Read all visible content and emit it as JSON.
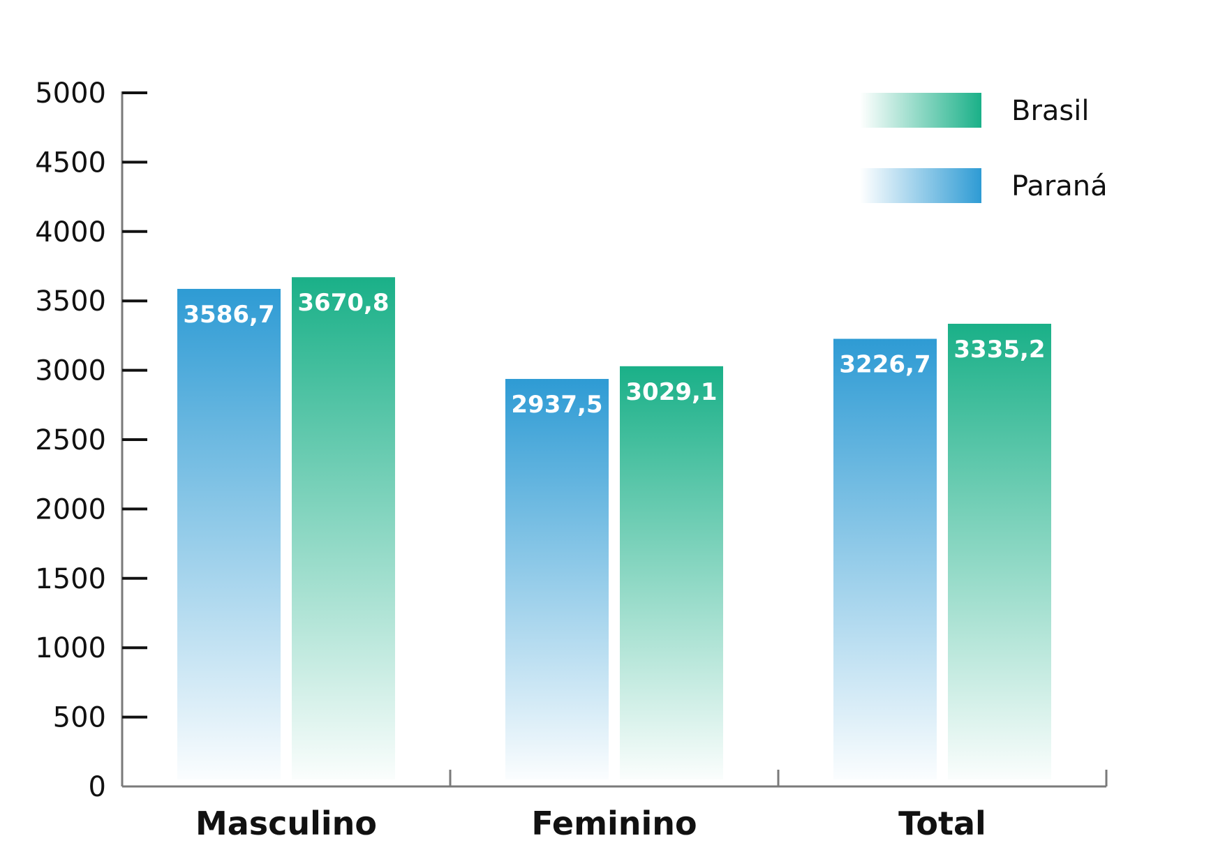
{
  "chart_data": {
    "type": "bar",
    "categories": [
      "Masculino",
      "Feminino",
      "Total"
    ],
    "series": [
      {
        "name": "Paraná",
        "values": [
          3586.7,
          2937.5,
          3226.7
        ],
        "labels": [
          "3586,7",
          "2937,5",
          "3226,7"
        ],
        "color": "#2e9bd4"
      },
      {
        "name": "Brasil",
        "values": [
          3670.8,
          3029.1,
          3335.2
        ],
        "labels": [
          "3670,8",
          "3029,1",
          "3335,2"
        ],
        "color": "#1ab088"
      }
    ],
    "ylim": [
      0,
      5000
    ],
    "yticks": [
      0,
      500,
      1000,
      1500,
      2000,
      2500,
      3000,
      3500,
      4000,
      4500,
      5000
    ],
    "legend": {
      "placement": "top-right",
      "order": [
        "Brasil",
        "Paraná"
      ]
    },
    "grid": false,
    "title": "",
    "xlabel": "",
    "ylabel": ""
  }
}
